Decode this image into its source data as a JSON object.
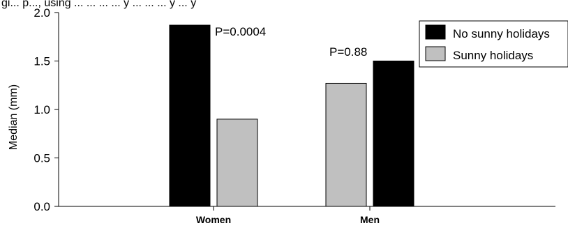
{
  "header_fragment": "gi... p..., using ... ... ... ... y ... ... ... y ... y",
  "colors": {
    "no_sunny": "#000000",
    "sunny": "#c0c0c0",
    "axis": "#000000"
  },
  "chart_data": {
    "type": "bar",
    "ylabel": "Median (mm)",
    "xlabel": "",
    "ylim": [
      0,
      2
    ],
    "yticks": [
      "0.0",
      "0.5",
      "1.0",
      "1.5",
      "2.0"
    ],
    "categories": [
      "Women",
      "Men"
    ],
    "series": [
      {
        "name": "No sunny holidays",
        "values": [
          1.87,
          1.5
        ]
      },
      {
        "name": "Sunny holidays",
        "values": [
          0.9,
          1.27
        ]
      }
    ],
    "bar_order": [
      [
        "No sunny holidays",
        "Sunny holidays"
      ],
      [
        "Sunny holidays",
        "No sunny holidays"
      ]
    ],
    "annotations": [
      "P=0.0004",
      "P=0.88"
    ],
    "legend": {
      "position": "top-right",
      "entries": [
        "No sunny holidays",
        "Sunny holidays"
      ]
    },
    "grid": false
  }
}
